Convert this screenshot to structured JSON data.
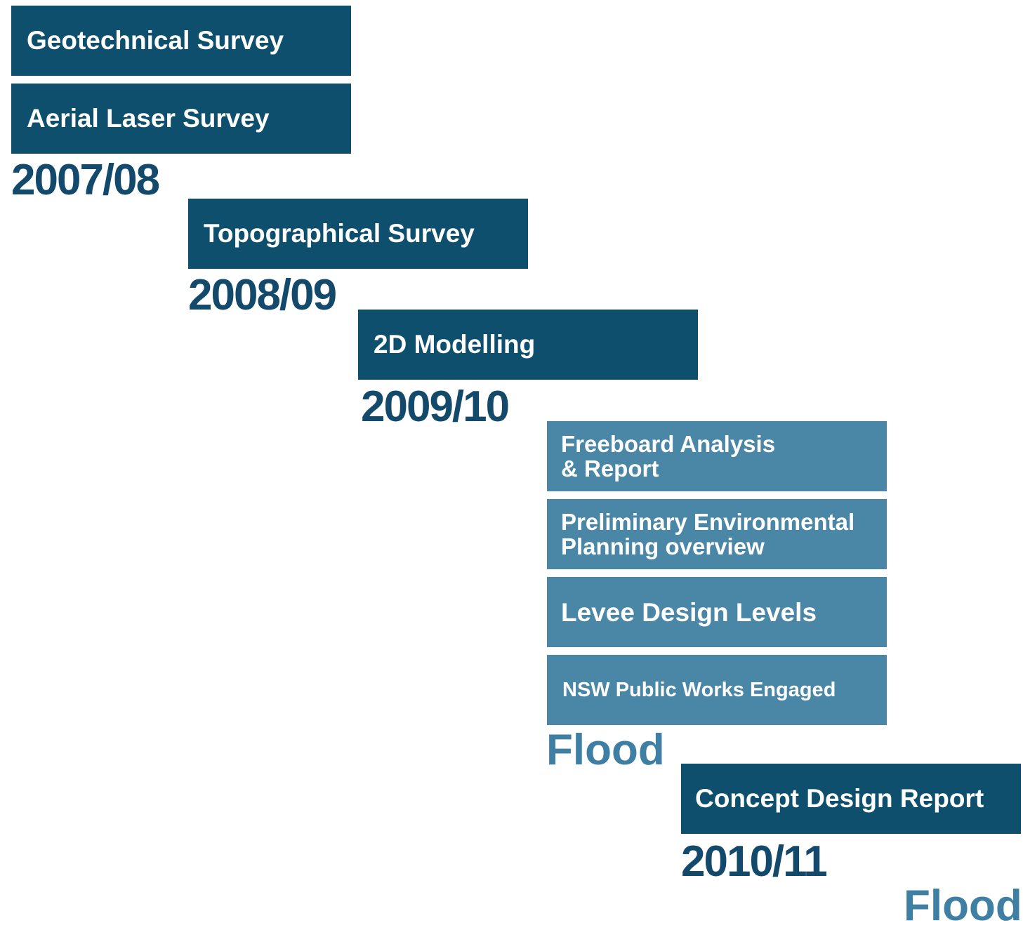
{
  "boxes": [
    {
      "lines": [
        "Geotechnical Survey"
      ]
    },
    {
      "lines": [
        "Aerial Laser Survey"
      ]
    },
    {
      "lines": [
        "Topographical Survey"
      ]
    },
    {
      "lines": [
        "2D Modelling"
      ]
    },
    {
      "lines": [
        "Freeboard Analysis",
        "& Report"
      ]
    },
    {
      "lines": [
        "Preliminary Environmental",
        "Planning overview"
      ]
    },
    {
      "lines": [
        "Levee Design Levels"
      ]
    },
    {
      "lines": [
        "NSW Public Works Engaged"
      ]
    },
    {
      "lines": [
        "Concept Design Report"
      ]
    }
  ],
  "years": [
    "2007/08",
    "2008/09",
    "2009/10",
    "2010/11"
  ],
  "events": [
    "Flood",
    "Flood"
  ]
}
